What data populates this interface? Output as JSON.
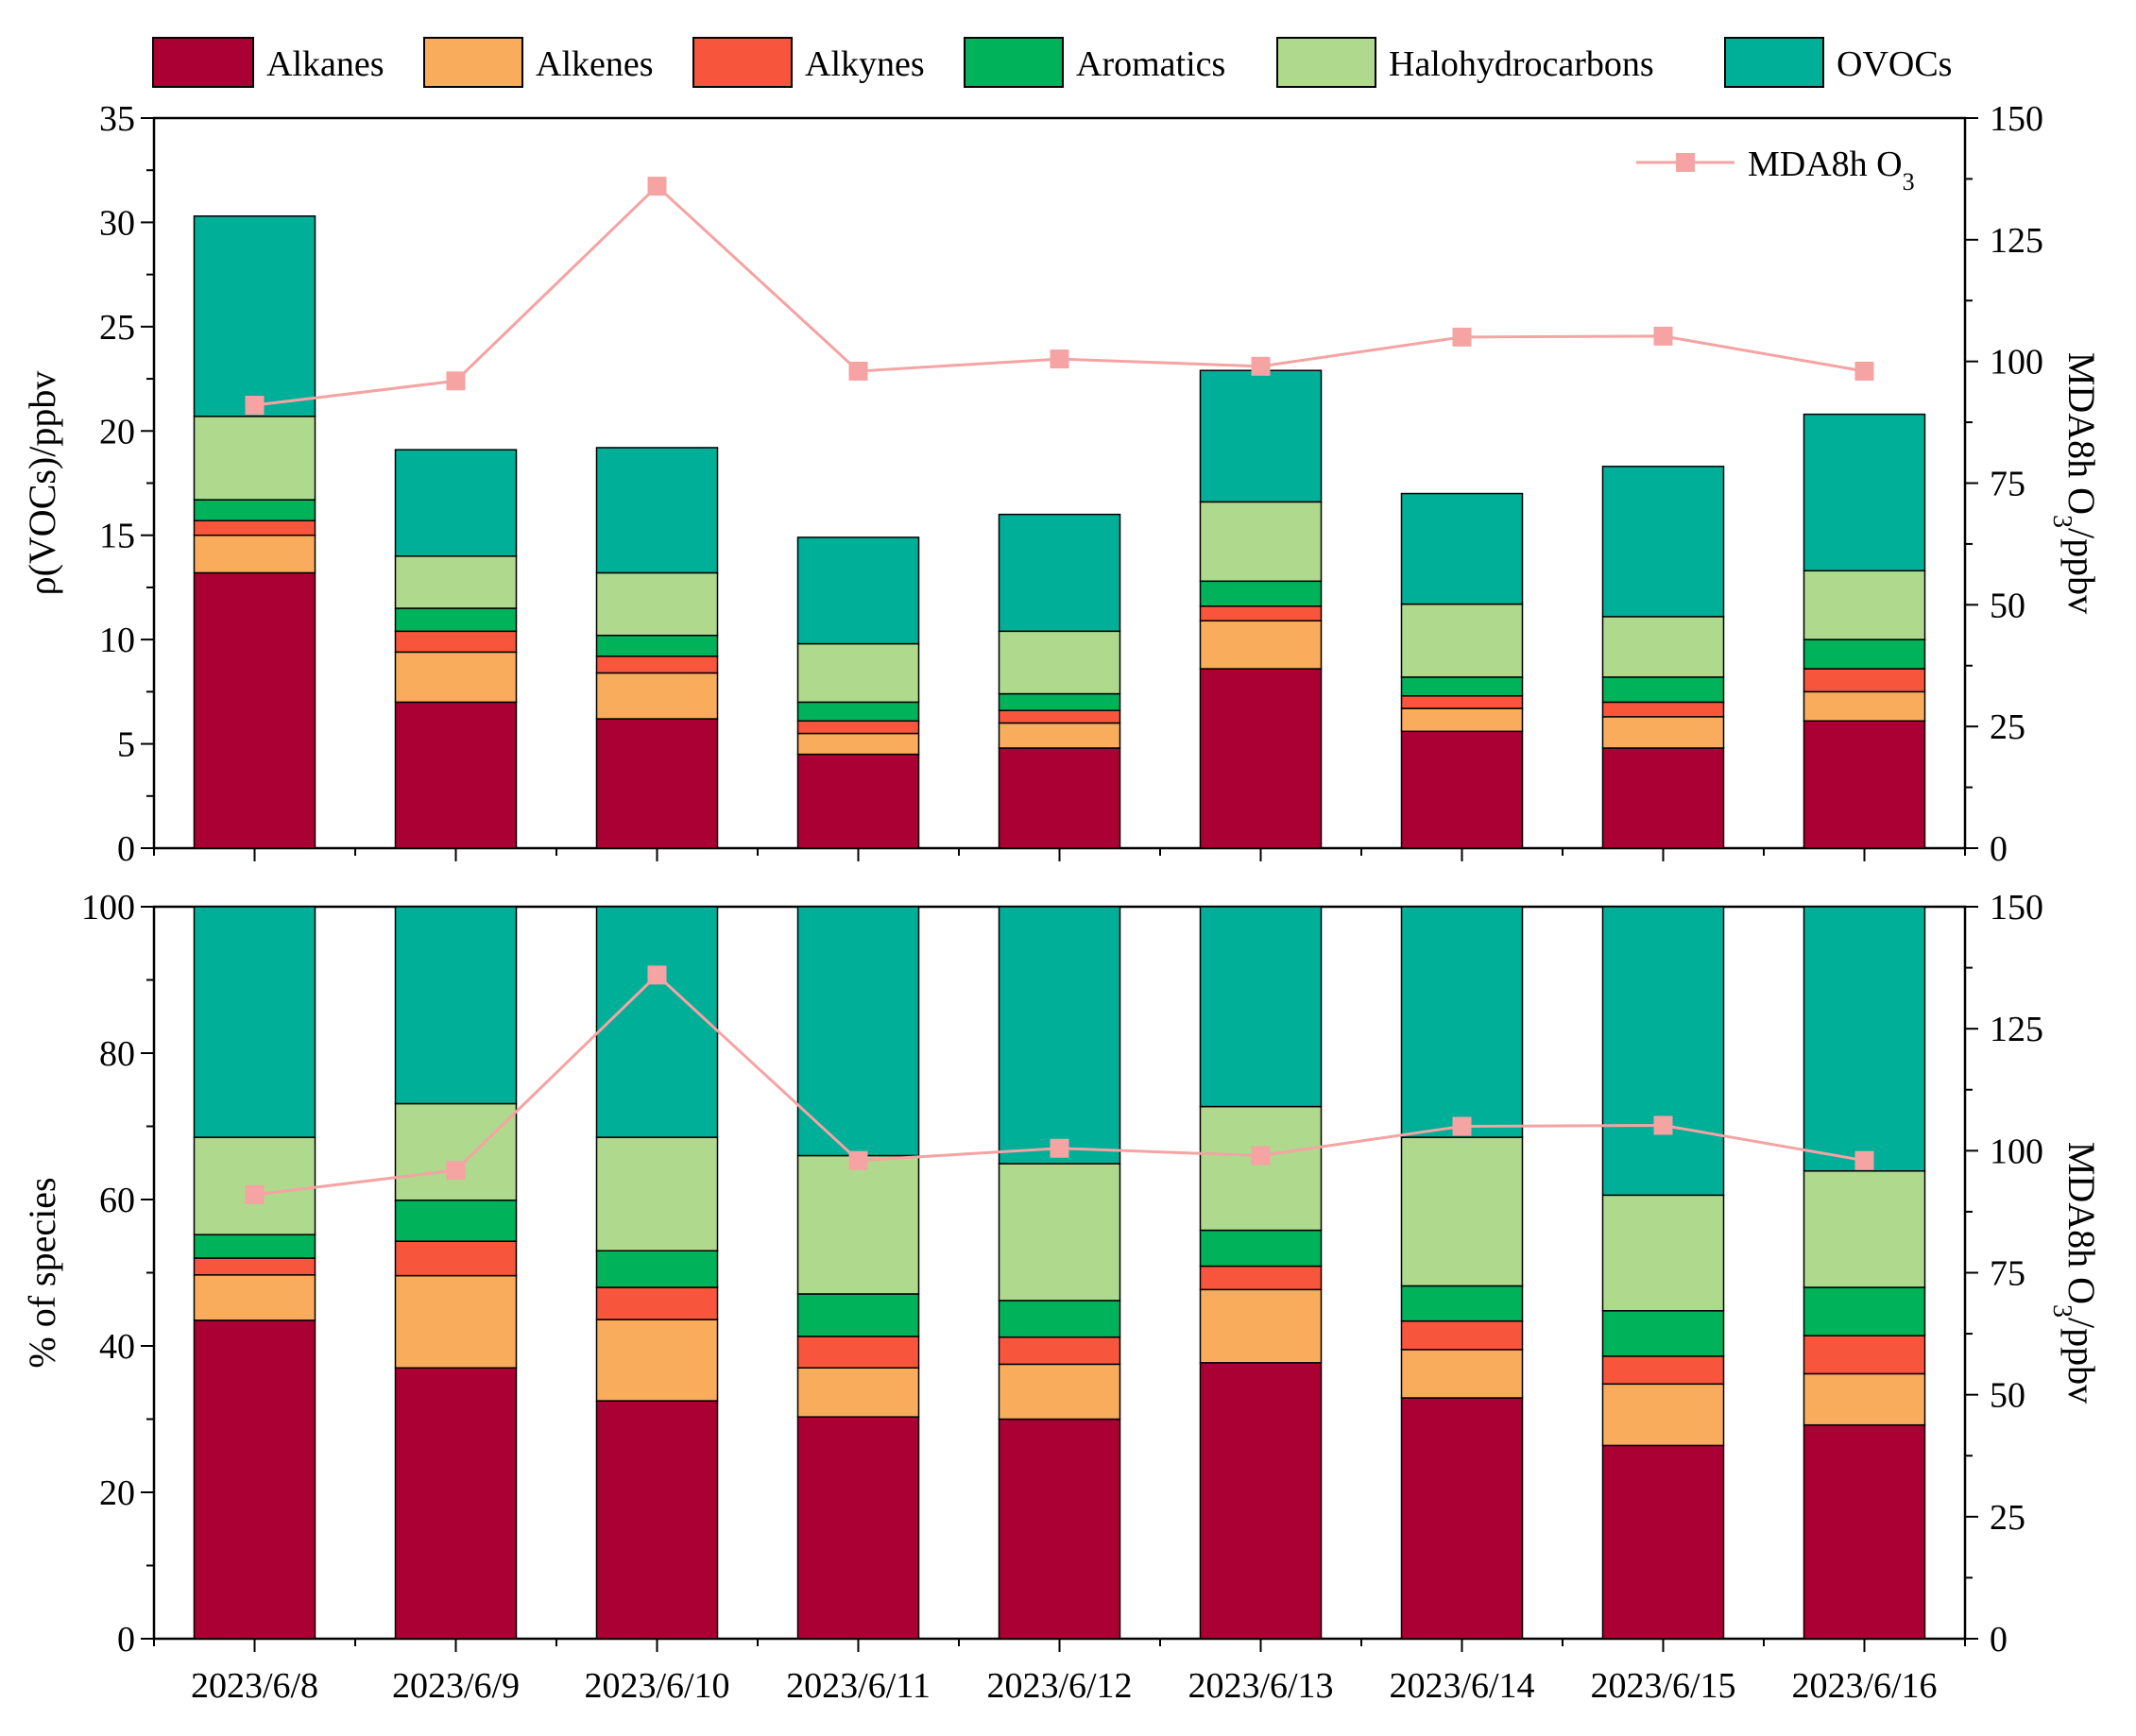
{
  "legend": {
    "categories": [
      "Alkanes",
      "Alkenes",
      "Alkynes",
      "Aromatics",
      "Halohydrocarbons",
      "OVOCs"
    ],
    "line_label_main": "MDA8h O",
    "line_label_sub": "3"
  },
  "colors": {
    "Alkanes": "#ab0034",
    "Alkenes": "#f9ad5c",
    "Alkynes": "#f7563c",
    "Aromatics": "#00b25a",
    "Halohydrocarbons": "#afd98d",
    "OVOCs": "#00af98",
    "line": "#f5a3a3"
  },
  "chart_data": [
    {
      "type": "bar",
      "stacked": true,
      "panel": "top",
      "categories": [
        "2023/6/8",
        "2023/6/9",
        "2023/6/10",
        "2023/6/11",
        "2023/6/12",
        "2023/6/13",
        "2023/6/14",
        "2023/6/15",
        "2023/6/16"
      ],
      "series": [
        {
          "name": "Alkanes",
          "values": [
            13.2,
            7.0,
            6.2,
            4.5,
            4.8,
            8.6,
            5.6,
            4.8,
            6.1
          ]
        },
        {
          "name": "Alkenes",
          "values": [
            1.8,
            2.4,
            2.2,
            1.0,
            1.2,
            2.3,
            1.1,
            1.5,
            1.4
          ]
        },
        {
          "name": "Alkynes",
          "values": [
            0.7,
            1.0,
            0.8,
            0.6,
            0.6,
            0.7,
            0.6,
            0.7,
            1.1
          ]
        },
        {
          "name": "Aromatics",
          "values": [
            1.0,
            1.1,
            1.0,
            0.9,
            0.8,
            1.2,
            0.9,
            1.2,
            1.4
          ]
        },
        {
          "name": "Halohydrocarbons",
          "values": [
            4.0,
            2.5,
            3.0,
            2.8,
            3.0,
            3.8,
            3.5,
            2.9,
            3.3
          ]
        },
        {
          "name": "OVOCs",
          "values": [
            9.6,
            5.1,
            6.0,
            5.1,
            5.6,
            6.3,
            5.3,
            7.2,
            7.5
          ]
        }
      ],
      "line_series": {
        "name": "MDA8h O3",
        "values": [
          91,
          96,
          136,
          98,
          100.5,
          99,
          105,
          105.2,
          98
        ]
      },
      "ylabel": "ρ(VOCs)/ppbv",
      "ylim": [
        0,
        35
      ],
      "yticks": [
        "0",
        "5",
        "10",
        "15",
        "20",
        "25",
        "30",
        "35"
      ],
      "y2label": "MDA8h O3/ppbv",
      "y2lim": [
        0,
        150
      ],
      "y2ticks": [
        "0",
        "25",
        "50",
        "75",
        "100",
        "125",
        "150"
      ],
      "legend_position": "top-right"
    },
    {
      "type": "bar",
      "stacked": true,
      "panel": "bottom",
      "categories": [
        "2023/6/8",
        "2023/6/9",
        "2023/6/10",
        "2023/6/11",
        "2023/6/12",
        "2023/6/13",
        "2023/6/14",
        "2023/6/15",
        "2023/6/16"
      ],
      "series": [
        {
          "name": "Alkanes",
          "values": [
            43.5,
            37.0,
            32.5,
            30.3,
            30.0,
            37.7,
            32.9,
            26.4,
            29.2
          ]
        },
        {
          "name": "Alkenes",
          "values": [
            6.2,
            12.6,
            11.1,
            6.7,
            7.5,
            10.0,
            6.6,
            8.4,
            7.0
          ]
        },
        {
          "name": "Alkynes",
          "values": [
            2.3,
            4.7,
            4.4,
            4.3,
            3.7,
            3.2,
            3.9,
            3.8,
            5.2
          ]
        },
        {
          "name": "Aromatics",
          "values": [
            3.2,
            5.6,
            5.0,
            5.8,
            5.0,
            4.9,
            4.8,
            6.2,
            6.6
          ]
        },
        {
          "name": "Halohydrocarbons",
          "values": [
            13.3,
            13.2,
            15.5,
            18.9,
            18.7,
            16.9,
            20.3,
            15.8,
            15.9
          ]
        },
        {
          "name": "OVOCs",
          "values": [
            31.5,
            26.9,
            31.5,
            34.0,
            35.1,
            27.3,
            31.5,
            39.4,
            36.1
          ]
        }
      ],
      "line_series": {
        "name": "MDA8h O3",
        "values": [
          91,
          96,
          136,
          98,
          100.5,
          99,
          105,
          105.2,
          98
        ]
      },
      "ylabel": "% of species",
      "ylim": [
        0,
        100
      ],
      "yticks": [
        "0",
        "20",
        "40",
        "60",
        "80",
        "100"
      ],
      "y2label": "MDA8h O3/ppbv",
      "y2lim": [
        0,
        150
      ],
      "y2ticks": [
        "0",
        "25",
        "50",
        "75",
        "100",
        "125",
        "150"
      ]
    }
  ]
}
